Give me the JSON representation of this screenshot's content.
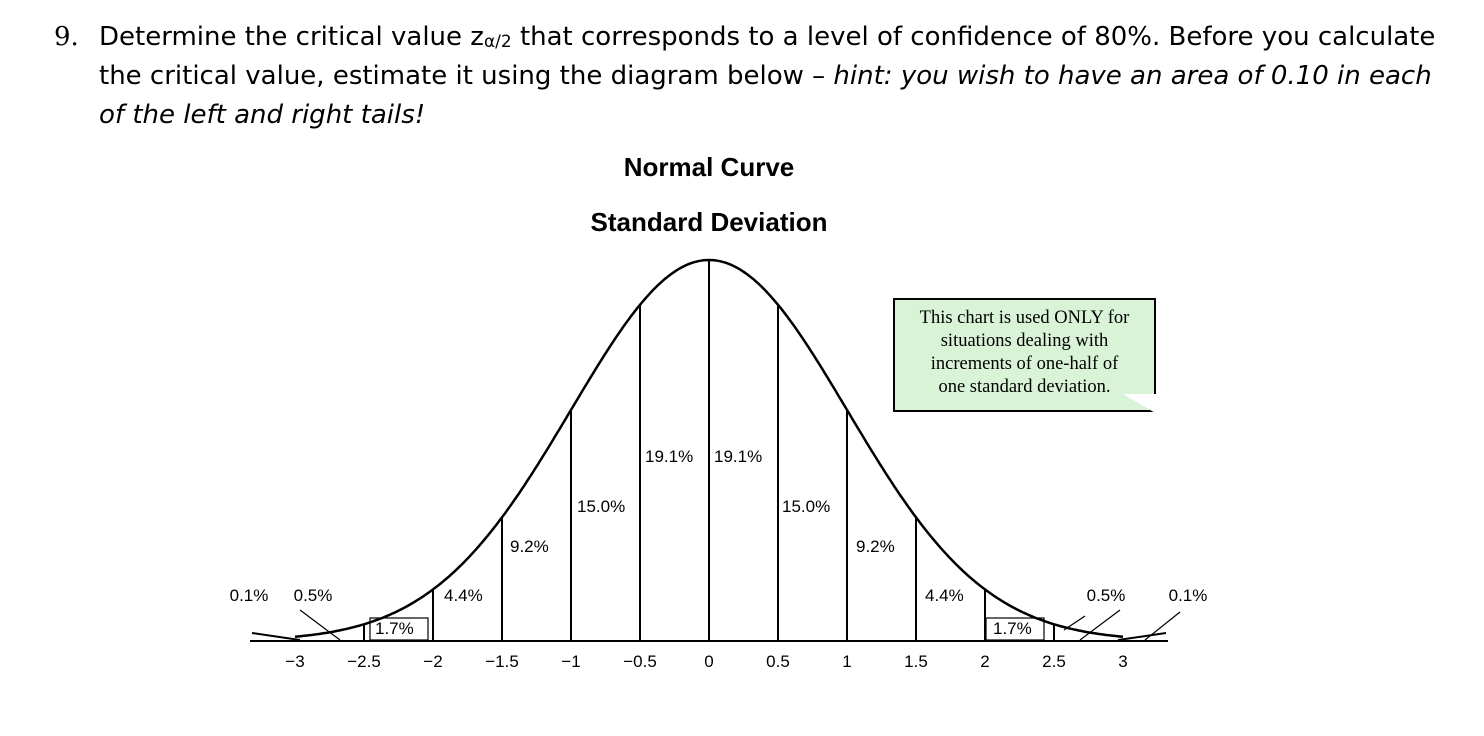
{
  "question": {
    "number": "9.",
    "text_before_sub": "Determine the critical value z",
    "subscript": "α/2",
    "text_after_sub": " that corresponds to a level of confidence of 80%.  Before you calculate the critical value, estimate it using the diagram below – ",
    "hint": "hint: you wish to have an area of 0.10 in each of the left and right tails!"
  },
  "chart_data": {
    "type": "area",
    "title": "Normal Curve",
    "subtitle": "Standard Deviation",
    "x_ticks": [
      "−3",
      "−2.5",
      "−2",
      "−1.5",
      "−1",
      "−0.5",
      "0",
      "0.5",
      "1",
      "1.5",
      "2",
      "2.5",
      "3"
    ],
    "x_values": [
      -3,
      -2.5,
      -2,
      -1.5,
      -1,
      -0.5,
      0,
      0.5,
      1,
      1.5,
      2,
      2.5,
      3
    ],
    "xlim": [
      -3,
      3
    ],
    "grid": false,
    "regions": [
      {
        "from": -3.5,
        "to": -3,
        "percent": "0.1%"
      },
      {
        "from": -3,
        "to": -2.5,
        "percent": "0.5%"
      },
      {
        "from": -2.5,
        "to": -2,
        "percent": "1.7%"
      },
      {
        "from": -2,
        "to": -1.5,
        "percent": "4.4%"
      },
      {
        "from": -1.5,
        "to": -1,
        "percent": "9.2%"
      },
      {
        "from": -1,
        "to": -0.5,
        "percent": "15.0%"
      },
      {
        "from": -0.5,
        "to": 0,
        "percent": "19.1%"
      },
      {
        "from": 0,
        "to": 0.5,
        "percent": "19.1%"
      },
      {
        "from": 0.5,
        "to": 1,
        "percent": "15.0%"
      },
      {
        "from": 1,
        "to": 1.5,
        "percent": "9.2%"
      },
      {
        "from": 1.5,
        "to": 2,
        "percent": "4.4%"
      },
      {
        "from": 2,
        "to": 2.5,
        "percent": "1.7%"
      },
      {
        "from": 2.5,
        "to": 3,
        "percent": "0.5%"
      },
      {
        "from": 3,
        "to": 3.5,
        "percent": "0.1%"
      }
    ],
    "annotation": {
      "lines": [
        "This chart is used ONLY for",
        "situations dealing with",
        "increments of one-half of",
        "one standard deviation."
      ]
    },
    "colors": {
      "note_background": "#d8f3d6",
      "curve": "#000000"
    }
  }
}
